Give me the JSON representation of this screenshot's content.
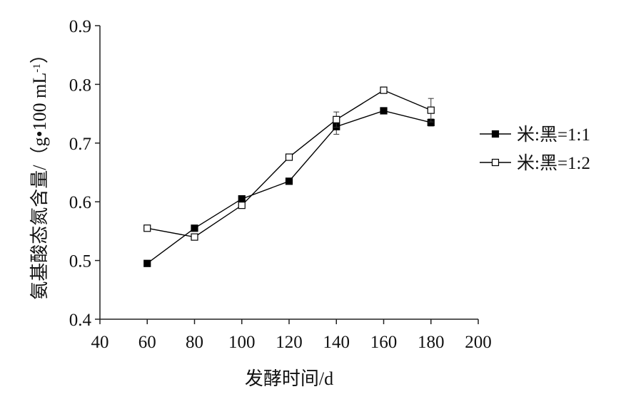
{
  "chart_data": {
    "type": "line",
    "title": "",
    "xlabel": "发酵时间/d",
    "ylabel": "氨基酸态氮含量/（g•100 mL",
    "ylabel_superscript": "-1",
    "ylabel_close": "）",
    "xlim": [
      40,
      200
    ],
    "ylim": [
      0.4,
      0.9
    ],
    "x_ticks": [
      "40",
      "60",
      "80",
      "100",
      "120",
      "140",
      "160",
      "180",
      "200"
    ],
    "y_ticks": [
      "0.4",
      "0.5",
      "0.6",
      "0.7",
      "0.8",
      "0.9"
    ],
    "grid": false,
    "legend_position": "right",
    "x": [
      60,
      80,
      100,
      120,
      140,
      160,
      180
    ],
    "series": [
      {
        "name": "米:黑=1:1",
        "marker": "filled-square",
        "color": "#000000",
        "values": [
          0.495,
          0.555,
          0.605,
          0.635,
          0.728,
          0.755,
          0.735
        ],
        "errors": [
          0.004,
          0.004,
          0.004,
          0.004,
          0.013,
          0.005,
          0.006
        ]
      },
      {
        "name": "米:黑=1:2",
        "marker": "open-square",
        "color": "#000000",
        "values": [
          0.555,
          0.54,
          0.594,
          0.676,
          0.74,
          0.79,
          0.756
        ],
        "errors": [
          0.004,
          0.004,
          0.004,
          0.005,
          0.013,
          0.004,
          0.02
        ]
      }
    ]
  }
}
